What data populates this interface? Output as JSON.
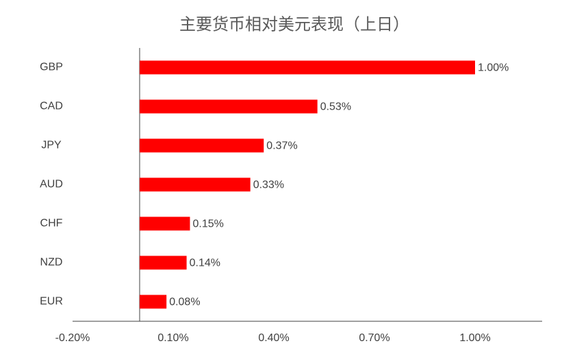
{
  "chart_data": {
    "type": "barh",
    "title": "主要货币相对美元表现（上日）",
    "categories": [
      "GBP",
      "CAD",
      "JPY",
      "AUD",
      "CHF",
      "NZD",
      "EUR"
    ],
    "values": [
      1.0,
      0.53,
      0.37,
      0.33,
      0.15,
      0.14,
      0.08
    ],
    "value_labels": [
      "1.00%",
      "0.53%",
      "0.37%",
      "0.33%",
      "0.15%",
      "0.14%",
      "0.08%"
    ],
    "color": "#ff0000",
    "xlim": [
      -0.2,
      1.2
    ],
    "xticks": [
      {
        "value": -0.2,
        "label": "-0.20%"
      },
      {
        "value": 0.1,
        "label": "0.10%"
      },
      {
        "value": 0.4,
        "label": "0.40%"
      },
      {
        "value": 0.7,
        "label": "0.70%"
      },
      {
        "value": 1.0,
        "label": "1.00%"
      }
    ],
    "grid": false
  }
}
